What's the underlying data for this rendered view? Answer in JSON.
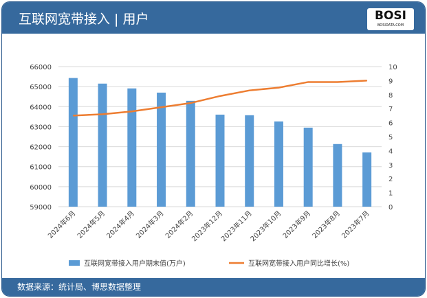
{
  "header": {
    "title": "互联网宽带接入 | 用户",
    "logo": "BOSI BOSIDATA.COM"
  },
  "footer": {
    "source": "数据来源：统计局、博思数据整理"
  },
  "colors": {
    "bar": "#5b9bd5",
    "line": "#ed7d31",
    "header": "#36699d"
  },
  "chart_data": {
    "type": "bar+line",
    "categories": [
      "2024年6月",
      "2024年5月",
      "2024年4月",
      "2024年3月",
      "2024年2月",
      "2023年12月",
      "2023年11月",
      "2023年10月",
      "2023年9月",
      "2023年8月",
      "2023年7月"
    ],
    "series": [
      {
        "name": "互联网宽带接入用户期末值(万户)",
        "type": "bar",
        "axis": "left",
        "values": [
          65430,
          65150,
          64910,
          64700,
          64290,
          63600,
          63570,
          63260,
          62950,
          62130,
          61710
        ]
      },
      {
        "name": "互联网宽带接入用户同比增长(%)",
        "type": "line",
        "axis": "right",
        "values": [
          6.5,
          6.6,
          6.8,
          7.1,
          7.4,
          7.9,
          8.3,
          8.5,
          8.9,
          8.9,
          9.0
        ]
      }
    ],
    "ylim": [
      59000,
      66000
    ],
    "yticks": [
      59000,
      60000,
      61000,
      62000,
      63000,
      64000,
      65000,
      66000
    ],
    "y2lim": [
      0,
      10
    ],
    "y2ticks": [
      0,
      1,
      2,
      3,
      4,
      5,
      6,
      7,
      8,
      9,
      10
    ],
    "grid": true,
    "legend": "bottom"
  }
}
